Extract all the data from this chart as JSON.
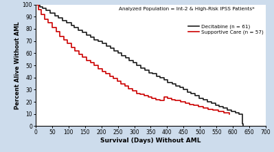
{
  "title_annotation": "Analyzed Population = Int-2 & High-Risk IPSS Patients*",
  "ylabel": "Percent Alive Without AML",
  "xlabel": "Survival (Days) Without AML",
  "xlim": [
    0,
    700
  ],
  "ylim": [
    0,
    100
  ],
  "xticks": [
    0,
    50,
    100,
    150,
    200,
    250,
    300,
    350,
    400,
    450,
    500,
    550,
    600,
    650,
    700
  ],
  "yticks": [
    0,
    10,
    20,
    30,
    40,
    50,
    60,
    70,
    80,
    90,
    100
  ],
  "background_color": "#cddcec",
  "plot_background": "#ffffff",
  "decitabine_color": "#1a1a1a",
  "supportive_color": "#cc0000",
  "decitabine_label": "Decitabine (n = 61)",
  "supportive_label": "Supportive Care (n = 57)",
  "dec_times": [
    0,
    12,
    22,
    32,
    45,
    58,
    70,
    82,
    95,
    108,
    118,
    130,
    142,
    155,
    167,
    178,
    190,
    202,
    215,
    227,
    238,
    250,
    262,
    273,
    285,
    297,
    308,
    320,
    332,
    344,
    355,
    367,
    378,
    390,
    402,
    415,
    427,
    438,
    450,
    462,
    473,
    485,
    498,
    510,
    522,
    535,
    547,
    558,
    570,
    582,
    595,
    607,
    618,
    628,
    632
  ],
  "dec_surv": [
    100,
    98,
    97,
    95,
    93,
    91,
    89,
    87,
    85,
    83,
    81,
    79,
    77,
    75,
    73,
    71,
    70,
    68,
    66,
    64,
    62,
    60,
    58,
    56,
    54,
    52,
    50,
    48,
    46,
    44,
    43,
    41,
    40,
    38,
    36,
    35,
    33,
    32,
    30,
    28,
    27,
    25,
    23,
    22,
    20,
    19,
    17,
    16,
    15,
    13,
    12,
    11,
    10,
    2,
    0
  ],
  "sup_times": [
    0,
    8,
    18,
    28,
    38,
    50,
    62,
    73,
    85,
    96,
    108,
    120,
    132,
    143,
    155,
    167,
    178,
    190,
    202,
    213,
    225,
    237,
    248,
    260,
    272,
    283,
    295,
    307,
    318,
    330,
    342,
    354,
    366,
    378,
    390,
    402,
    414,
    425,
    440,
    455,
    468,
    480,
    495,
    510,
    525,
    540,
    555,
    572,
    590
  ],
  "sup_surv": [
    100,
    96,
    92,
    88,
    85,
    81,
    78,
    74,
    71,
    68,
    65,
    62,
    59,
    57,
    54,
    52,
    50,
    47,
    45,
    43,
    41,
    39,
    37,
    35,
    33,
    31,
    29,
    27,
    26,
    25,
    24,
    23,
    22,
    21,
    24,
    23,
    22,
    21,
    20,
    19,
    18,
    17,
    16,
    15,
    14,
    13,
    12,
    11,
    10
  ]
}
